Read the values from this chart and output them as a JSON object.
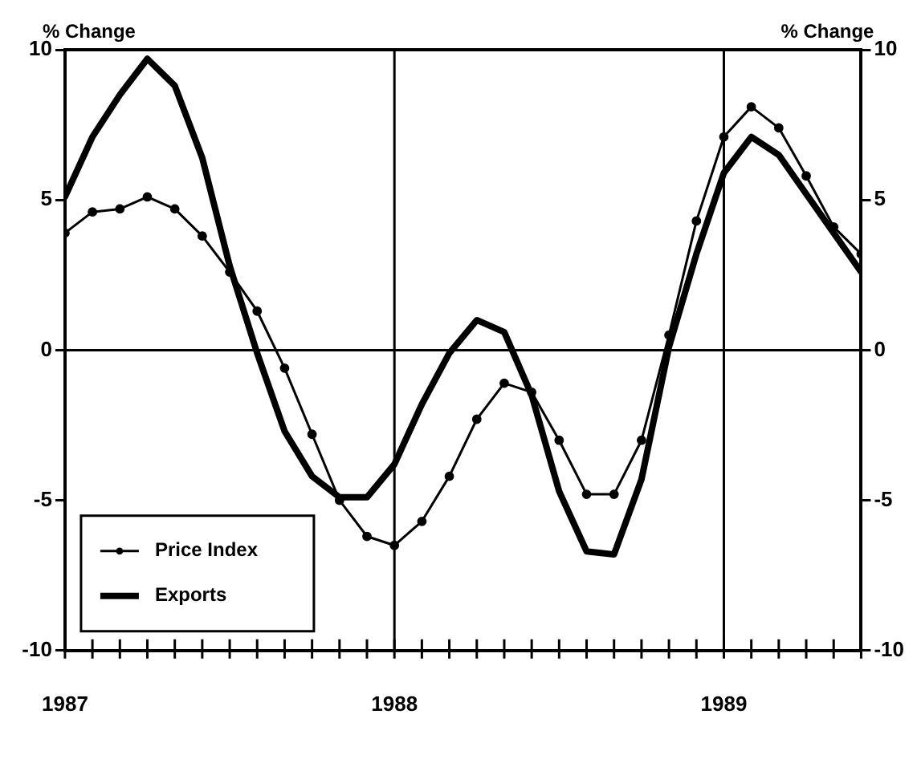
{
  "chart_data": {
    "type": "line",
    "ylabel": "% Change",
    "y2label": "% Change",
    "x": [
      "1987-01",
      "1987-02",
      "1987-03",
      "1987-04",
      "1987-05",
      "1987-06",
      "1987-07",
      "1987-08",
      "1987-09",
      "1987-10",
      "1987-11",
      "1987-12",
      "1988-01",
      "1988-02",
      "1988-03",
      "1988-04",
      "1988-05",
      "1988-06",
      "1988-07",
      "1988-08",
      "1988-09",
      "1988-10",
      "1988-11",
      "1988-12",
      "1989-01",
      "1989-02",
      "1989-03",
      "1989-04",
      "1989-05",
      "1989-06"
    ],
    "series": [
      {
        "name": "Price Index",
        "color": "#000000",
        "marker": "circle",
        "values": [
          3.9,
          4.6,
          4.7,
          5.1,
          4.7,
          3.8,
          2.6,
          1.3,
          -0.6,
          -2.8,
          -5.0,
          -6.2,
          -6.5,
          -5.7,
          -4.2,
          -2.3,
          -1.1,
          -1.4,
          -3.0,
          -4.8,
          -4.8,
          -3.0,
          0.5,
          4.3,
          7.1,
          8.1,
          7.4,
          5.8,
          4.1,
          3.2
        ]
      },
      {
        "name": "Exports",
        "color": "#000000",
        "marker": "none",
        "values": [
          5.1,
          7.1,
          8.5,
          9.7,
          8.8,
          6.4,
          2.8,
          -0.1,
          -2.7,
          -4.2,
          -4.9,
          -4.9,
          -3.8,
          -1.8,
          -0.1,
          1.0,
          0.6,
          -1.5,
          -4.7,
          -6.7,
          -6.8,
          -4.3,
          0.1,
          3.2,
          5.9,
          7.1,
          6.5,
          5.2,
          3.9,
          2.6
        ]
      }
    ],
    "xlim": [
      "1987-01",
      "1989-06"
    ],
    "xticks": [
      {
        "value": "1987-01",
        "label": "1987"
      },
      {
        "value": "1987-02",
        "label": null
      },
      {
        "value": "1987-03",
        "label": null
      },
      {
        "value": "1987-04",
        "label": null
      },
      {
        "value": "1987-05",
        "label": null
      },
      {
        "value": "1987-06",
        "label": null
      },
      {
        "value": "1987-07",
        "label": null
      },
      {
        "value": "1987-08",
        "label": null
      },
      {
        "value": "1987-09",
        "label": null
      },
      {
        "value": "1987-10",
        "label": null
      },
      {
        "value": "1987-11",
        "label": null
      },
      {
        "value": "1987-12",
        "label": null
      },
      {
        "value": "1988-01",
        "label": "1988"
      },
      {
        "value": "1988-02",
        "label": null
      },
      {
        "value": "1988-03",
        "label": null
      },
      {
        "value": "1988-04",
        "label": null
      },
      {
        "value": "1988-05",
        "label": null
      },
      {
        "value": "1988-06",
        "label": null
      },
      {
        "value": "1988-07",
        "label": null
      },
      {
        "value": "1988-08",
        "label": null
      },
      {
        "value": "1988-09",
        "label": null
      },
      {
        "value": "1988-10",
        "label": null
      },
      {
        "value": "1988-11",
        "label": null
      },
      {
        "value": "1988-12",
        "label": null
      },
      {
        "value": "1989-01",
        "label": "1989"
      },
      {
        "value": "1989-02",
        "label": null
      },
      {
        "value": "1989-03",
        "label": null
      },
      {
        "value": "1989-04",
        "label": null
      },
      {
        "value": "1989-05",
        "label": null
      },
      {
        "value": "1989-06",
        "label": null
      }
    ],
    "ylim": [
      -10,
      10
    ],
    "yticks": [
      -10,
      -5,
      0,
      5,
      10
    ],
    "y2lim": [
      -10,
      10
    ],
    "y2ticks": [
      -10,
      -5,
      0,
      5,
      10
    ],
    "ref_lines": [
      {
        "axis": "y",
        "value": 0
      },
      {
        "axis": "x",
        "value": "1988-01"
      },
      {
        "axis": "x",
        "value": "1989-01"
      }
    ],
    "grid": false,
    "legend": "bottom left",
    "line_style": "solid"
  }
}
